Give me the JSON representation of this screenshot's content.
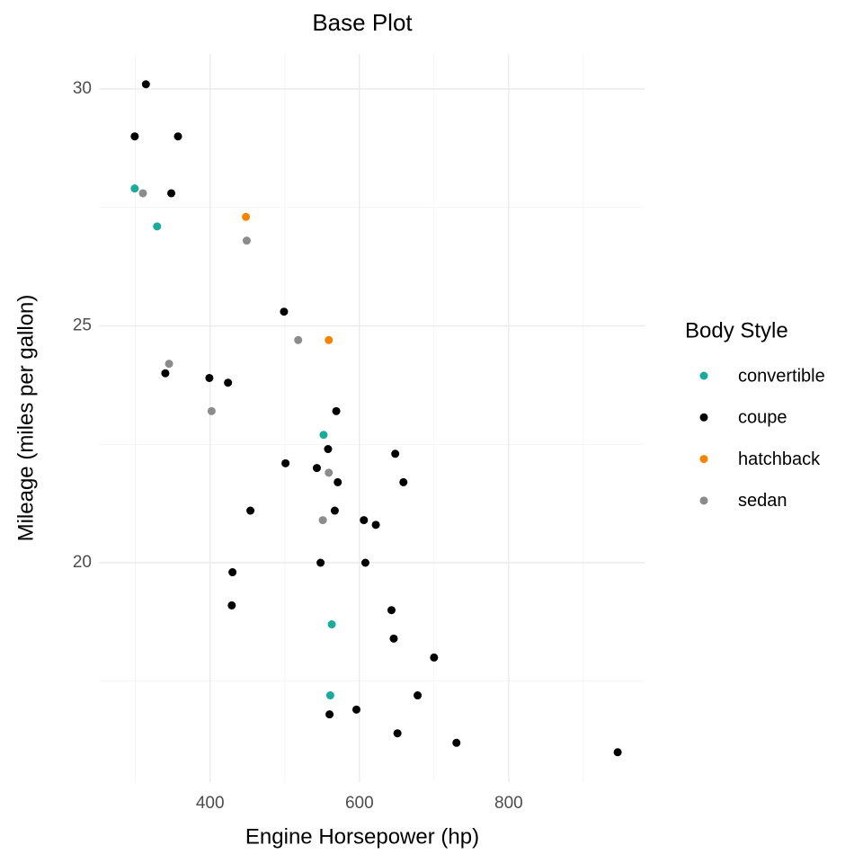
{
  "chart_data": {
    "type": "scatter",
    "title": "Base Plot",
    "x_label": "Engine Horsepower (hp)",
    "y_label": "Mileage (miles per gallon)",
    "legend_title": "Body Style",
    "legend_position": "right",
    "grid": true,
    "xlim": [
      251,
      982
    ],
    "ylim": [
      15.37,
      30.74
    ],
    "xticks": [
      400,
      600,
      800
    ],
    "yticks": [
      20,
      25,
      30
    ],
    "x_minor_ticks": [
      300,
      500,
      700,
      900
    ],
    "y_minor_ticks": [
      17.5,
      22.5,
      27.5
    ],
    "series": [
      {
        "name": "convertible",
        "color": "#1aab9b",
        "x": [
          299,
          329,
          552,
          563,
          561
        ],
        "values": [
          27.9,
          27.1,
          22.7,
          18.7,
          17.2
        ]
      },
      {
        "name": "coupe",
        "color": "#000000",
        "x": [
          314,
          299,
          357,
          348,
          499,
          340,
          399,
          424,
          569,
          648,
          558,
          501,
          543,
          571,
          659,
          454,
          567,
          606,
          622,
          608,
          548,
          430,
          429,
          643,
          646,
          700,
          678,
          596,
          560,
          651,
          730,
          946
        ],
        "values": [
          30.1,
          29.0,
          29.0,
          27.8,
          25.3,
          24.0,
          23.9,
          23.8,
          23.2,
          22.3,
          22.4,
          22.1,
          22.0,
          21.7,
          21.7,
          21.1,
          21.1,
          20.9,
          20.8,
          20.0,
          20.0,
          19.8,
          19.1,
          19.0,
          18.4,
          18.0,
          17.2,
          16.9,
          16.8,
          16.4,
          16.2,
          16.0
        ]
      },
      {
        "name": "hatchback",
        "color": "#f58400",
        "x": [
          448,
          559
        ],
        "values": [
          27.3,
          24.7
        ]
      },
      {
        "name": "sedan",
        "color": "#8c8c8c",
        "x": [
          310,
          449,
          518,
          345,
          402,
          559,
          551
        ],
        "values": [
          27.8,
          26.8,
          24.7,
          24.2,
          23.2,
          21.9,
          20.9
        ]
      }
    ]
  }
}
